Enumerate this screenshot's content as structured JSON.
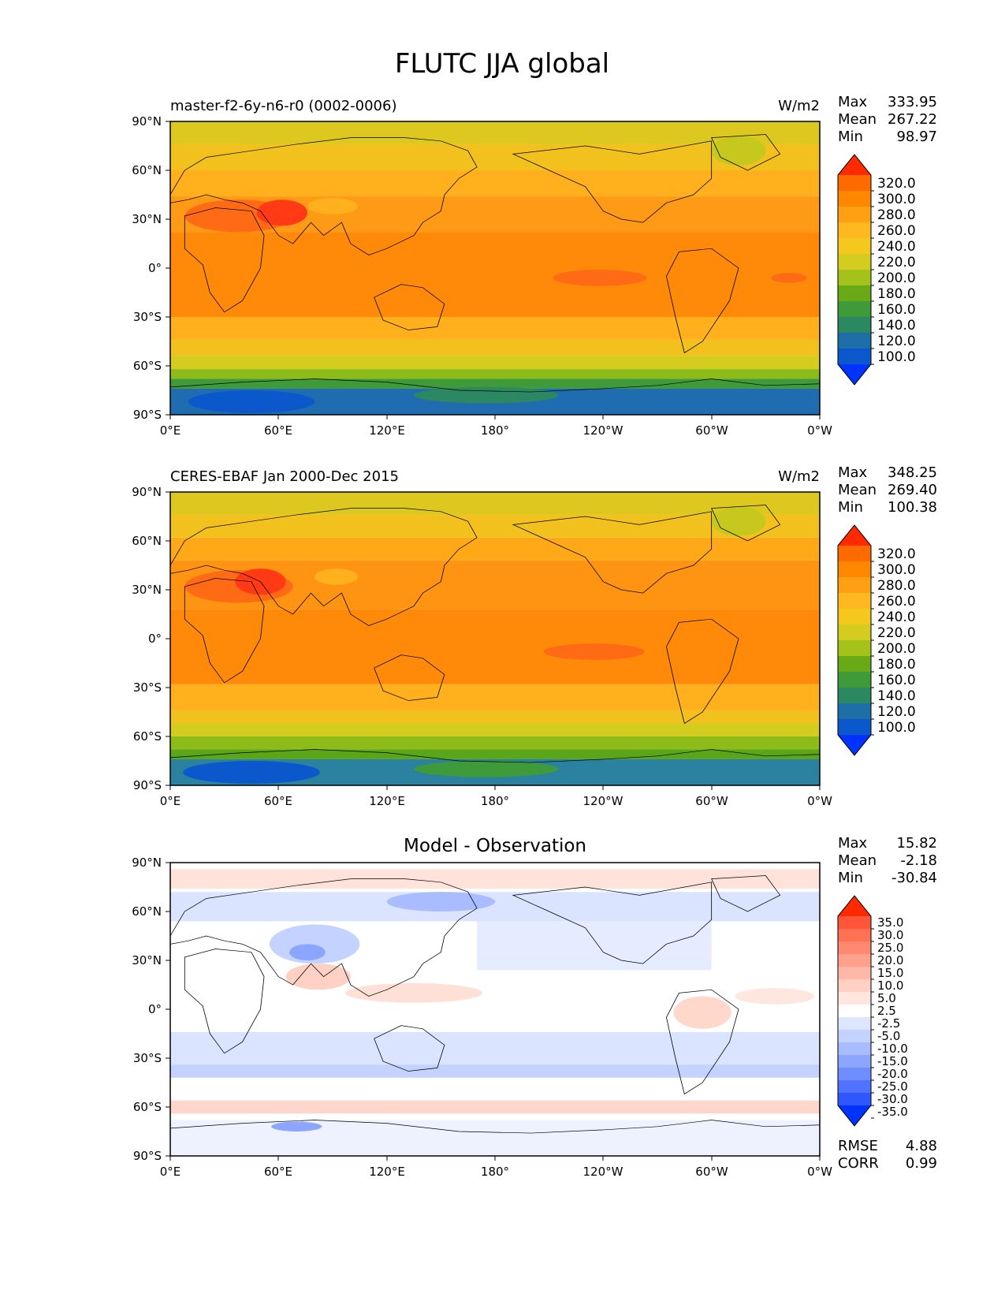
{
  "title": "FLUTC JJA global",
  "axes": {
    "lat_labels": [
      "90°N",
      "60°N",
      "30°N",
      "0°",
      "30°S",
      "60°S",
      "90°S"
    ],
    "lon_labels": [
      "0°E",
      "60°E",
      "120°E",
      "180°",
      "120°W",
      "60°W",
      "0°W"
    ]
  },
  "panels": [
    {
      "subtitle": "master-f2-6y-n6-r0 (0002-0006)",
      "units": "W/m2",
      "stats": [
        {
          "label": "Max",
          "value": "333.95"
        },
        {
          "label": "Mean",
          "value": "267.22"
        },
        {
          "label": "Min",
          "value": "98.97"
        }
      ],
      "colorbar": {
        "ticks": [
          "320.0",
          "300.0",
          "280.0",
          "260.0",
          "240.0",
          "220.0",
          "200.0",
          "180.0",
          "160.0",
          "140.0",
          "120.0",
          "100.0"
        ],
        "colors": [
          "#ff2a00",
          "#ff6a00",
          "#ff8800",
          "#ff9f14",
          "#ffb81f",
          "#f5c81e",
          "#d4cc1e",
          "#a5c21a",
          "#6aaa16",
          "#3f9a3a",
          "#2c8860",
          "#1e6fa8",
          "#0b58cc",
          "#0033ff"
        ]
      }
    },
    {
      "subtitle": "CERES-EBAF Jan 2000-Dec 2015",
      "units": "W/m2",
      "stats": [
        {
          "label": "Max",
          "value": "348.25"
        },
        {
          "label": "Mean",
          "value": "269.40"
        },
        {
          "label": "Min",
          "value": "100.38"
        }
      ],
      "colorbar": {
        "ticks": [
          "320.0",
          "300.0",
          "280.0",
          "260.0",
          "240.0",
          "220.0",
          "200.0",
          "180.0",
          "160.0",
          "140.0",
          "120.0",
          "100.0"
        ],
        "colors": [
          "#ff2a00",
          "#ff6a00",
          "#ff8800",
          "#ff9f14",
          "#ffb81f",
          "#f5c81e",
          "#d4cc1e",
          "#a5c21a",
          "#6aaa16",
          "#3f9a3a",
          "#2c8860",
          "#1e6fa8",
          "#0b58cc",
          "#0033ff"
        ]
      }
    },
    {
      "subtitle": "Model - Observation",
      "units": "",
      "stats": [
        {
          "label": "Max",
          "value": "15.82"
        },
        {
          "label": "Mean",
          "value": "-2.18"
        },
        {
          "label": "Min",
          "value": "-30.84"
        }
      ],
      "colorbar": {
        "ticks": [
          "35.0",
          "30.0",
          "25.0",
          "20.0",
          "15.0",
          "10.0",
          "5.0",
          "2.5",
          "-2.5",
          "-5.0",
          "-10.0",
          "-15.0",
          "-20.0",
          "-25.0",
          "-30.0",
          "-35.0"
        ],
        "colors": [
          "#ff2a00",
          "#ff5538",
          "#ff7055",
          "#ff8870",
          "#ffa08c",
          "#ffb8a8",
          "#ffd0c4",
          "#ffe6de",
          "#ffffff",
          "#dfe6ff",
          "#c4d2ff",
          "#a8bcff",
          "#8ca5ff",
          "#6f8dff",
          "#4f72ff",
          "#2f57ff",
          "#0033ff"
        ]
      },
      "metrics": [
        {
          "label": "RMSE",
          "value": "4.88"
        },
        {
          "label": "CORR",
          "value": "0.99"
        }
      ]
    }
  ]
}
